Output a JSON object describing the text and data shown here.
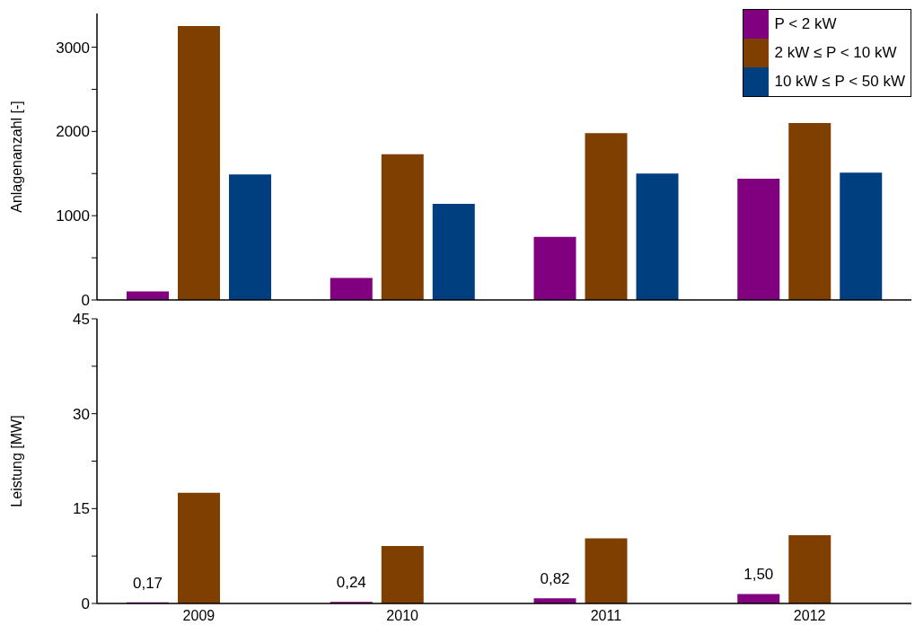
{
  "chart_data": [
    {
      "type": "bar",
      "ylabel": "Anlagenanzahl [-]",
      "categories": [
        "2009",
        "2010",
        "2011",
        "2012"
      ],
      "series": [
        {
          "name": "P < 2 kW",
          "color": "#800080",
          "values": [
            100,
            260,
            750,
            1440
          ]
        },
        {
          "name": "2 kW ≤ P < 10 kW",
          "color": "#7f3f00",
          "values": [
            3250,
            1730,
            1980,
            2100
          ]
        },
        {
          "name": "10 kW ≤ P < 50 kW",
          "color": "#003f7f",
          "values": [
            1490,
            1140,
            1500,
            1510
          ]
        }
      ],
      "ylim": [
        0,
        3400
      ],
      "yticks": [
        0,
        {
          "value": 500,
          "label": null
        },
        1000,
        {
          "value": 1500,
          "label": null
        },
        2000,
        {
          "value": 2500,
          "label": null
        },
        3000
      ],
      "tick_labels": "y",
      "legend": "top right",
      "grid": false
    },
    {
      "type": "bar",
      "ylabel": "Leistung [MW]",
      "categories": [
        "2009",
        "2010",
        "2011",
        "2012"
      ],
      "series": [
        {
          "color": "#800080",
          "values": [
            0.17,
            0.24,
            0.82,
            1.5
          ],
          "value_labels": [
            "0,17",
            "0,24",
            "0,82",
            "1,50"
          ]
        },
        {
          "color": "#7f3f00",
          "values": [
            17.5,
            9.1,
            10.3,
            10.8
          ]
        },
        {
          "color": "#003f7f",
          "values": [
            null,
            null,
            null,
            null
          ]
        }
      ],
      "ylim": [
        0,
        45
      ],
      "yticks": [
        0,
        {
          "value": 7.5,
          "label": null
        },
        15,
        {
          "value": 22.5,
          "label": null
        },
        30,
        {
          "value": 37.5,
          "label": null
        },
        45
      ],
      "legend": false,
      "grid": false
    }
  ]
}
